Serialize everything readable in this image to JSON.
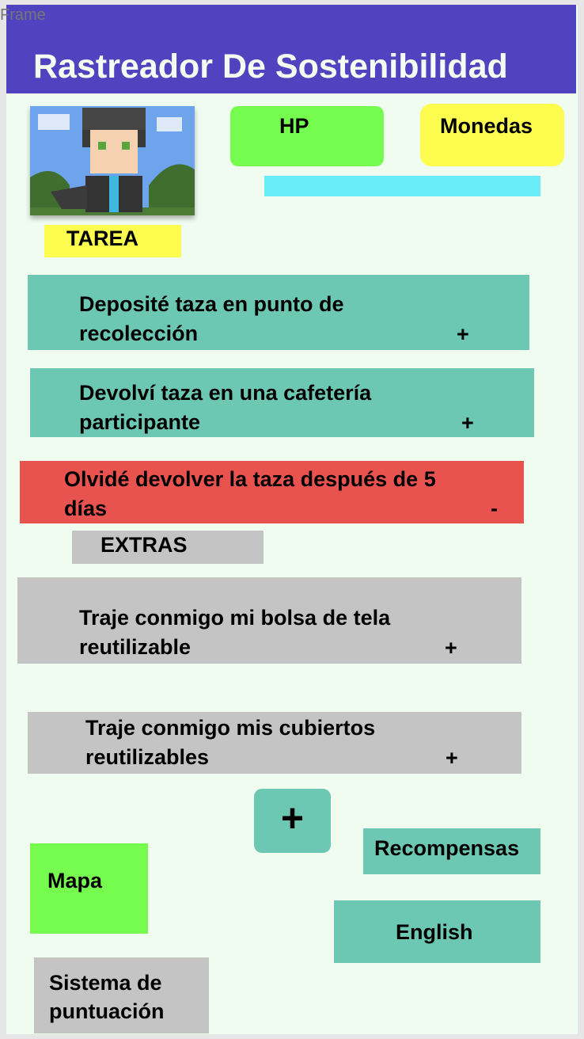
{
  "window": {
    "frame_label": "Frame"
  },
  "header": {
    "title": "Rastreador De Sostenibilidad",
    "color": "#5043c0"
  },
  "stats": {
    "hp_label": "HP",
    "coins_label": "Monedas",
    "hp_color": "#76fb4f",
    "coins_color": "#fdfd50",
    "bar_color": "#6aedf9"
  },
  "avatar": {
    "icon": "pixel-character-avatar"
  },
  "sections": {
    "tasks_label": "TAREA",
    "extras_label": "EXTRAS"
  },
  "tasks": [
    {
      "line1": "Deposité taza en punto de",
      "line2": "recolección",
      "sign": "+"
    },
    {
      "line1": "Devolví taza en una cafetería",
      "line2": "participante",
      "sign": "+"
    },
    {
      "line1": "Olvidé devolver la taza después de 5",
      "line2": "días",
      "sign": "-"
    }
  ],
  "extras": [
    {
      "line1": "Traje conmigo mi bolsa de tela",
      "line2": "reutilizable",
      "sign": "+"
    },
    {
      "line1": "Traje conmigo mis cubiertos",
      "line2": "reutilizables",
      "sign": "+"
    }
  ],
  "buttons": {
    "add": "+",
    "rewards": "Recompensas",
    "map": "Mapa",
    "english": "English",
    "scoring_line1": "Sistema de",
    "scoring_line2": "puntuación"
  },
  "colors": {
    "positive": "#6dc8b3",
    "negative": "#e8534f",
    "extra": "#c4c4c4"
  }
}
